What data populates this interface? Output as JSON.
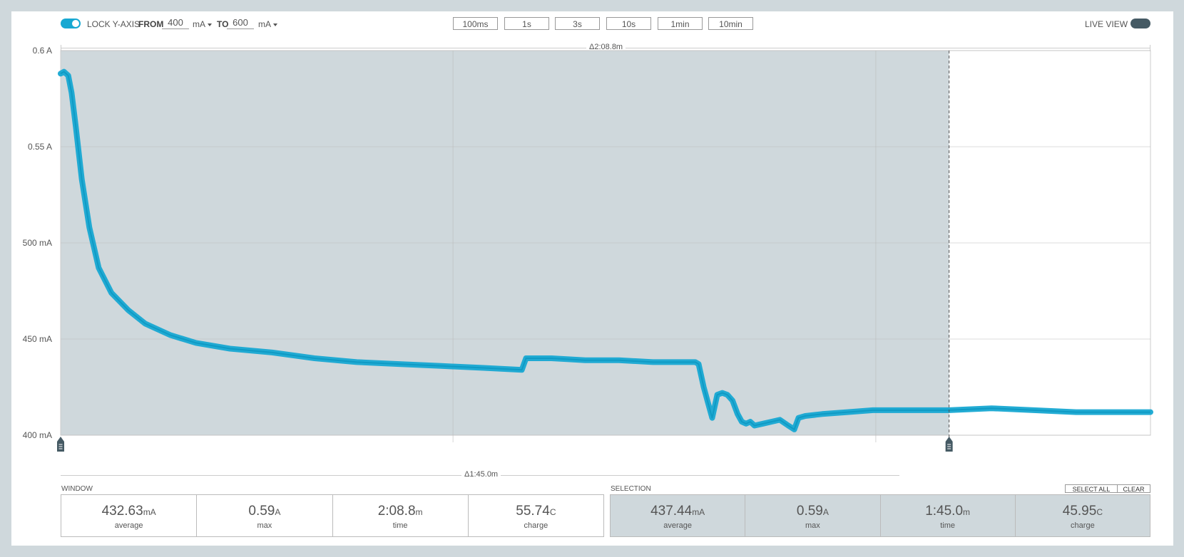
{
  "toolbar": {
    "lock_label": "LOCK Y-AXIS",
    "from_label": "FROM",
    "from_value": "400",
    "from_unit": "mA",
    "to_label": "TO",
    "to_value": "600",
    "to_unit": "mA",
    "window_buttons": [
      "100ms",
      "1s",
      "3s",
      "10s",
      "1min",
      "10min"
    ],
    "live_view_label": "LIVE VIEW"
  },
  "colors": {
    "accent": "#17a8d2",
    "selection_bg": "#cfd8dc",
    "toggle_off": "#455a64"
  },
  "window_delta": "Δ2:08.8m",
  "selection_delta": "Δ1:45.0m",
  "chart_data": {
    "type": "line",
    "y_ticks": [
      "0.6 A",
      "0.55 A",
      "500 mA",
      "450 mA",
      "400 mA"
    ],
    "ylim": [
      400,
      600
    ],
    "yunit": "mA",
    "xlim": [
      0,
      128.8
    ],
    "xunit": "s",
    "selection_range": [
      0,
      105.0
    ],
    "grid": true,
    "series": [
      {
        "x": [
          0,
          0.4,
          0.9,
          1.3,
          1.8,
          2.5,
          3.4,
          4.5,
          6.0,
          8.0,
          10.0,
          13.0,
          16.0,
          20.0,
          25.0,
          30.0,
          35.0,
          40.0,
          45.0,
          50.0,
          54.5,
          55.0,
          58.0,
          62.0,
          66.0,
          70.0,
          75.0,
          75.4,
          76.0,
          76.5,
          77.0,
          77.6,
          78.2,
          78.8,
          79.4,
          80.0,
          80.5,
          81.0,
          81.5,
          82.0,
          83.0,
          84.0,
          85.0,
          86.0,
          86.7,
          87.2,
          88.0,
          90.0,
          93.0,
          96.0,
          100.0,
          105.0,
          110.0,
          115.0,
          120.0,
          128.8
        ],
        "y": [
          588,
          589,
          587,
          578,
          560,
          533,
          508,
          487,
          474,
          465,
          458,
          452,
          448,
          445,
          443,
          440,
          438,
          437,
          436,
          435,
          434,
          440,
          440,
          439,
          439,
          438,
          438,
          437,
          425,
          417,
          409,
          421,
          422,
          421,
          418,
          411,
          407,
          406,
          407,
          405,
          406,
          407,
          408,
          405,
          403,
          409,
          410,
          411,
          412,
          413,
          413,
          413,
          414,
          413,
          412,
          412
        ]
      }
    ]
  },
  "window_stats": {
    "label": "WINDOW",
    "items": [
      {
        "value": "432.63",
        "unit": "mA",
        "name": "average"
      },
      {
        "value": "0.59",
        "unit": "A",
        "name": "max"
      },
      {
        "value": "2:08.8",
        "unit": "m",
        "name": "time"
      },
      {
        "value": "55.74",
        "unit": "C",
        "name": "charge"
      }
    ]
  },
  "selection_stats": {
    "label": "SELECTION",
    "select_all_label": "SELECT ALL",
    "clear_label": "CLEAR",
    "items": [
      {
        "value": "437.44",
        "unit": "mA",
        "name": "average"
      },
      {
        "value": "0.59",
        "unit": "A",
        "name": "max"
      },
      {
        "value": "1:45.0",
        "unit": "m",
        "name": "time"
      },
      {
        "value": "45.95",
        "unit": "C",
        "name": "charge"
      }
    ]
  }
}
